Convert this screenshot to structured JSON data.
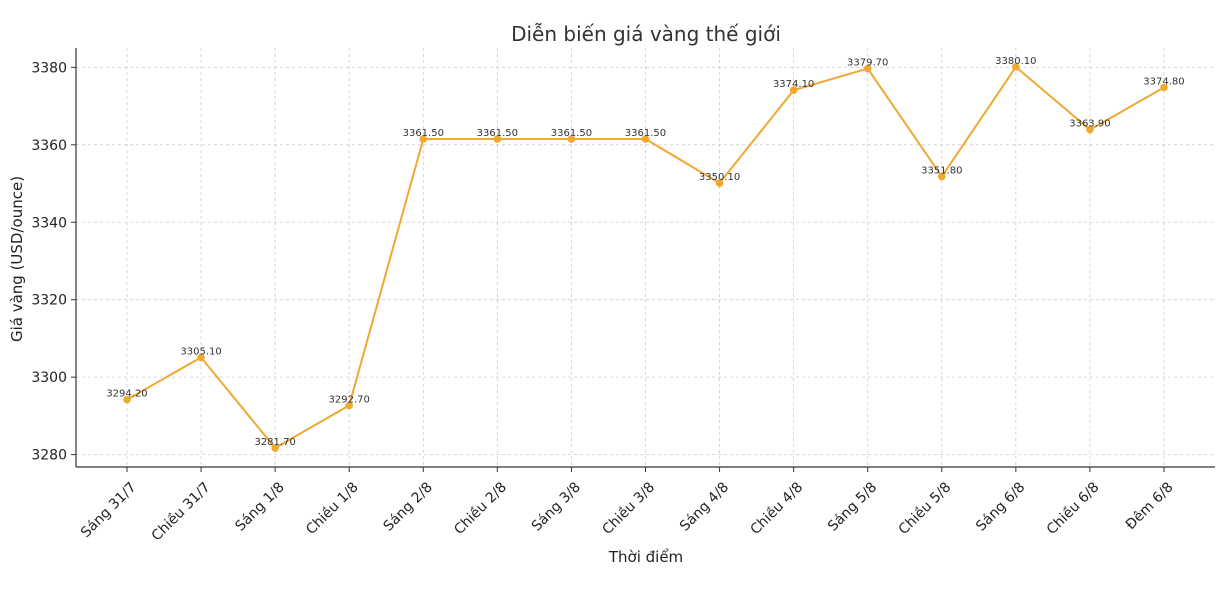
{
  "chart_data": {
    "type": "line",
    "title": "Diễn biến giá vàng thế giới",
    "xlabel": "Thời điểm",
    "ylabel": "Giá vàng (USD/ounce)",
    "categories": [
      "Sáng 31/7",
      "Chiều 31/7",
      "Sáng 1/8",
      "Chiều 1/8",
      "Sáng 2/8",
      "Chiều 2/8",
      "Sáng 3/8",
      "Chiều 3/8",
      "Sáng 4/8",
      "Chiều 4/8",
      "Sáng 5/8",
      "Chiều 5/8",
      "Sáng 6/8",
      "Chiều 6/8",
      "Đêm 6/8"
    ],
    "series": [
      {
        "values": [
          3294.2,
          3305.1,
          3281.7,
          3292.7,
          3361.5,
          3361.5,
          3361.5,
          3361.5,
          3350.1,
          3374.1,
          3379.7,
          3351.8,
          3380.1,
          3363.9,
          3374.8
        ],
        "data_labels": [
          "3294.20",
          "3305.10",
          "3281.70",
          "3292.70",
          "3361.50",
          "3361.50",
          "3361.50",
          "3361.50",
          "3350.10",
          "3374.10",
          "3379.70",
          "3351.80",
          "3380.10",
          "3363.90",
          "3374.80"
        ],
        "color": "#F0A830"
      }
    ],
    "yticks": [
      3280,
      3300,
      3320,
      3340,
      3360,
      3380
    ],
    "ylim": [
      3276.8,
      3385.0
    ],
    "grid": true,
    "legend": "none"
  }
}
